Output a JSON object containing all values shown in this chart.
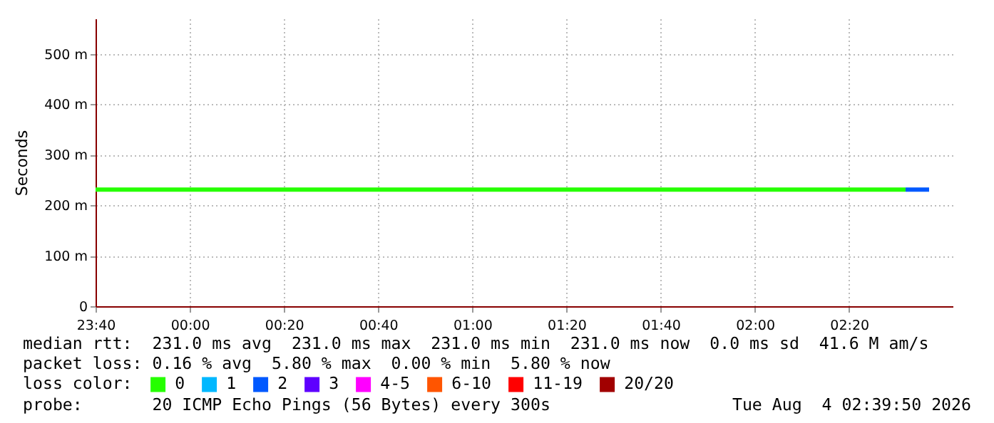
{
  "chart_data": {
    "type": "line",
    "ylabel": "Seconds",
    "legend_title": "loss color:",
    "legend": "bottom",
    "grid": true,
    "xlim": [
      "2026-08-03T23:40",
      "2026-08-04T02:42"
    ],
    "xticks": [
      {
        "value": "2026-08-03T23:40",
        "label": "23:40"
      },
      {
        "value": "2026-08-04T00:00",
        "label": "00:00"
      },
      {
        "value": "2026-08-04T00:20",
        "label": "00:20"
      },
      {
        "value": "2026-08-04T00:40",
        "label": "00:40"
      },
      {
        "value": "2026-08-04T01:00",
        "label": "01:00"
      },
      {
        "value": "2026-08-04T01:20",
        "label": "01:20"
      },
      {
        "value": "2026-08-04T01:40",
        "label": "01:40"
      },
      {
        "value": "2026-08-04T02:00",
        "label": "02:00"
      },
      {
        "value": "2026-08-04T02:20",
        "label": "02:20"
      }
    ],
    "ylim": [
      0,
      570
    ],
    "yticks": [
      0,
      {
        "value": 100,
        "label": "100 m"
      },
      {
        "value": 200,
        "label": "200 m"
      },
      {
        "value": 300,
        "label": "300 m"
      },
      {
        "value": 400,
        "label": "400 m"
      },
      {
        "value": 500,
        "label": "500 m"
      }
    ],
    "series": [
      {
        "name": "0",
        "color": "#26ff00",
        "x": [
          "2026-08-03T23:40",
          "2026-08-04T02:32"
        ],
        "values": [
          231,
          231
        ]
      },
      {
        "name": "1",
        "color": "#00b8ff",
        "values": [
          null
        ]
      },
      {
        "name": "2",
        "color": "#0059ff",
        "x": [
          "2026-08-04T02:32",
          "2026-08-04T02:37"
        ],
        "values": [
          231,
          231
        ]
      },
      {
        "name": "3",
        "color": "#5e00ff",
        "values": [
          null
        ]
      },
      {
        "name": "4-5",
        "color": "#ff00ff",
        "values": [
          null
        ]
      },
      {
        "name": "6-10",
        "color": "#ff5500",
        "values": [
          null
        ]
      },
      {
        "name": "11-19",
        "color": "#ff0000",
        "values": [
          null
        ]
      },
      {
        "name": "20/20",
        "color": "#a10000",
        "values": [
          null
        ]
      }
    ],
    "annotations": [
      "median rtt:  231.0 ms avg  231.0 ms max  231.0 ms min  231.0 ms now  0.0 ms sd  41.6 M am/s",
      "packet loss: 0.16 % avg  5.80 % max  0.00 % min  5.80 % now",
      "probe:       20 ICMP Echo Pings (56 Bytes) every 300s",
      "Tue Aug  4 02:39:50 2026"
    ]
  }
}
